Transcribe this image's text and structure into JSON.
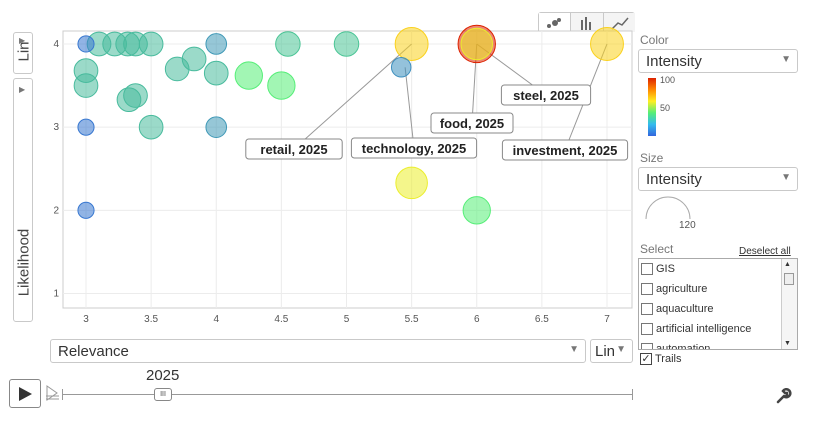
{
  "chart_data": {
    "type": "scatter",
    "subtype": "bubble",
    "xlabel": "Relevance",
    "ylabel": "Likelihood",
    "x_ticks": [
      "3",
      "3.5",
      "4",
      "4.5",
      "5",
      "5.5",
      "6",
      "6.5",
      "7"
    ],
    "y_ticks": [
      "1",
      "2",
      "3",
      "4"
    ],
    "xlim": [
      2.8,
      7.2
    ],
    "ylim": [
      0.9,
      4.15
    ],
    "grid": true,
    "year": "2025",
    "color_scale": {
      "label": "Color",
      "variable": "Intensity",
      "max": "100",
      "mid": "50"
    },
    "size_scale": {
      "label": "Size",
      "variable": "Intensity",
      "value": "120"
    },
    "points": [
      {
        "x": 3.0,
        "y": 4.0,
        "intensity": 5
      },
      {
        "x": 3.1,
        "y": 4.0,
        "intensity": 25
      },
      {
        "x": 3.22,
        "y": 4.0,
        "intensity": 25
      },
      {
        "x": 3.32,
        "y": 4.0,
        "intensity": 25
      },
      {
        "x": 3.38,
        "y": 4.0,
        "intensity": 25
      },
      {
        "x": 3.5,
        "y": 4.0,
        "intensity": 25
      },
      {
        "x": 4.0,
        "y": 4.0,
        "intensity": 15
      },
      {
        "x": 4.55,
        "y": 4.0,
        "intensity": 28
      },
      {
        "x": 5.0,
        "y": 4.0,
        "intensity": 28
      },
      {
        "x": 3.0,
        "y": 3.68,
        "intensity": 25
      },
      {
        "x": 3.0,
        "y": 3.5,
        "intensity": 25
      },
      {
        "x": 3.7,
        "y": 3.7,
        "intensity": 25
      },
      {
        "x": 3.83,
        "y": 3.82,
        "intensity": 25
      },
      {
        "x": 4.0,
        "y": 3.65,
        "intensity": 25
      },
      {
        "x": 3.33,
        "y": 3.33,
        "intensity": 25
      },
      {
        "x": 3.38,
        "y": 3.38,
        "intensity": 25
      },
      {
        "x": 3.0,
        "y": 3.0,
        "intensity": 5
      },
      {
        "x": 3.5,
        "y": 3.0,
        "intensity": 25
      },
      {
        "x": 4.0,
        "y": 3.0,
        "intensity": 15
      },
      {
        "x": 4.25,
        "y": 3.62,
        "intensity": 40
      },
      {
        "x": 4.5,
        "y": 3.5,
        "intensity": 40
      },
      {
        "x": 5.42,
        "y": 3.72,
        "intensity": 12
      },
      {
        "x": 5.5,
        "y": 2.33,
        "intensity": 62
      },
      {
        "x": 6.0,
        "y": 2.0,
        "intensity": 40
      },
      {
        "x": 3.0,
        "y": 2.0,
        "intensity": 5
      },
      {
        "x": 5.5,
        "y": 4.0,
        "intensity": 70
      },
      {
        "x": 6.0,
        "y": 4.0,
        "intensity": 100
      },
      {
        "x": 6.0,
        "y": 4.0,
        "intensity": 62
      },
      {
        "x": 7.0,
        "y": 4.0,
        "intensity": 70
      }
    ],
    "annotations": [
      {
        "text": "retail, 2025",
        "x": 5.5,
        "y": 4.0
      },
      {
        "text": "technology, 2025",
        "x": 5.45,
        "y": 3.72
      },
      {
        "text": "food, 2025",
        "x": 6.0,
        "y": 4.0
      },
      {
        "text": "steel, 2025",
        "x": 6.0,
        "y": 4.0
      },
      {
        "text": "investment, 2025",
        "x": 7.0,
        "y": 4.0
      }
    ]
  },
  "controls": {
    "y_scale": "Lin",
    "x_scale": "Lin",
    "x_selector": "Relevance",
    "y_selector": "Likelihood",
    "color_label": "Color",
    "color_select": "Intensity",
    "size_label": "Size",
    "size_select": "Intensity",
    "size_value": "120",
    "legend_max": "100",
    "legend_mid": "50",
    "select_label": "Select",
    "deselect_all": "Deselect all",
    "select_items": [
      "GIS",
      "agriculture",
      "aquaculture",
      "artificial intelligence",
      "automation"
    ],
    "trails_label": "Trails",
    "year_label": "2025",
    "play_icon": "play-icon",
    "wrench_icon": "wrench-icon"
  },
  "colors": {
    "low": "#3366dd",
    "mid": "#55ee77",
    "high_mid": "#ffee22",
    "high": "#dd2200"
  }
}
